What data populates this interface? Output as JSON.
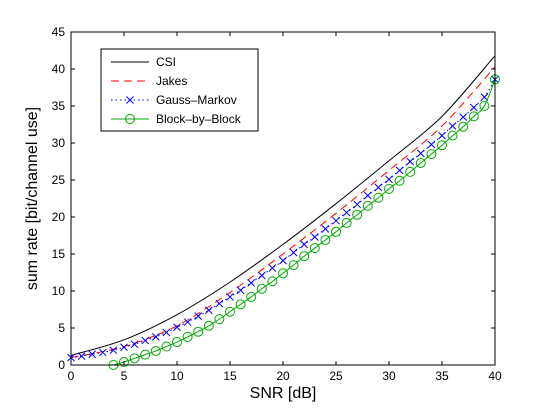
{
  "chart_data": {
    "type": "line",
    "xlabel": "SNR [dB]",
    "ylabel": "sum rate [bit/channel use]",
    "xlim": [
      0,
      40
    ],
    "ylim": [
      0,
      45
    ],
    "xticks": [
      0,
      5,
      10,
      15,
      20,
      25,
      30,
      35,
      40
    ],
    "yticks": [
      0,
      5,
      10,
      15,
      20,
      25,
      30,
      35,
      40,
      45
    ],
    "grid": false,
    "legend_position": "top-left",
    "series": [
      {
        "name": "CSI",
        "style": "solid",
        "color": "#000000",
        "x": [
          0,
          5,
          10,
          15,
          20,
          25,
          30,
          35,
          40
        ],
        "y": [
          1.3,
          3.4,
          6.8,
          11.2,
          16.3,
          21.8,
          27.6,
          33.6,
          41.8
        ]
      },
      {
        "name": "Jakes",
        "style": "dashed",
        "color": "#ff0000",
        "x": [
          0,
          5,
          10,
          15,
          20,
          25,
          30,
          35,
          40
        ],
        "y": [
          1.0,
          2.5,
          5.3,
          9.8,
          15.0,
          20.5,
          26.3,
          32.3,
          40.3
        ]
      },
      {
        "name": "Gauss–Markov",
        "style": "dotted-x",
        "color": "#0000ff",
        "x": [
          0,
          1,
          2,
          3,
          4,
          5,
          6,
          7,
          8,
          9,
          10,
          11,
          12,
          13,
          14,
          15,
          16,
          17,
          18,
          19,
          20,
          21,
          22,
          23,
          24,
          25,
          26,
          27,
          28,
          29,
          30,
          31,
          32,
          33,
          34,
          35,
          36,
          37,
          38,
          39,
          40
        ],
        "y": [
          1.0,
          1.2,
          1.45,
          1.7,
          2.0,
          2.4,
          2.8,
          3.3,
          3.8,
          4.4,
          5.1,
          5.8,
          6.6,
          7.4,
          8.3,
          9.2,
          10.1,
          11.1,
          12.1,
          13.1,
          14.1,
          15.2,
          16.3,
          17.3,
          18.4,
          19.5,
          20.6,
          21.7,
          22.9,
          24.0,
          25.1,
          26.3,
          27.5,
          28.6,
          29.8,
          31.0,
          32.3,
          33.5,
          34.8,
          36.2,
          38.6
        ]
      },
      {
        "name": "Block–by–Block",
        "style": "solid-o",
        "color": "#00aa00",
        "x": [
          4,
          5,
          6,
          7,
          8,
          9,
          10,
          11,
          12,
          13,
          14,
          15,
          16,
          17,
          18,
          19,
          20,
          21,
          22,
          23,
          24,
          25,
          26,
          27,
          28,
          29,
          30,
          31,
          32,
          33,
          34,
          35,
          36,
          37,
          38,
          39,
          40
        ],
        "y": [
          0.0,
          0.4,
          0.9,
          1.4,
          1.9,
          2.5,
          3.1,
          3.8,
          4.5,
          5.3,
          6.2,
          7.2,
          8.2,
          9.2,
          10.3,
          11.3,
          12.4,
          13.5,
          14.7,
          15.8,
          16.9,
          18.0,
          19.2,
          20.3,
          21.5,
          22.6,
          23.8,
          24.9,
          26.1,
          27.3,
          28.5,
          29.7,
          31.0,
          32.2,
          33.6,
          35.0,
          38.6
        ]
      }
    ]
  }
}
